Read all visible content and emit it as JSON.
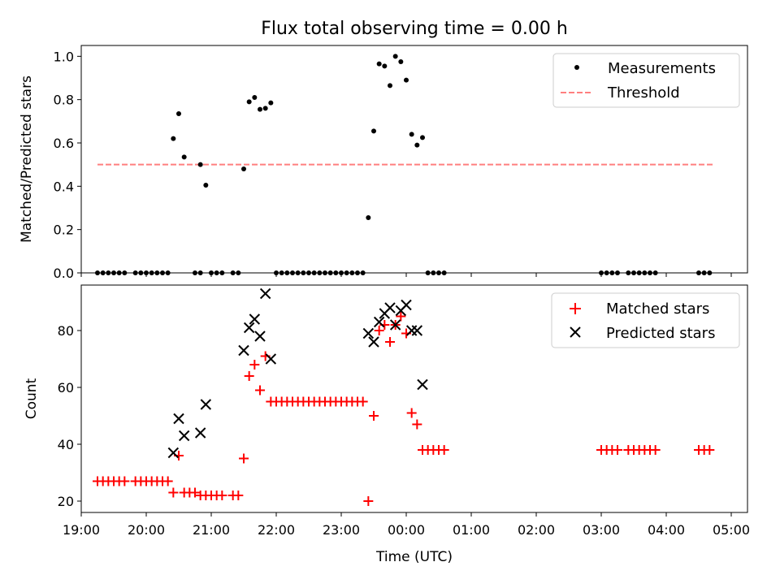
{
  "title": "Flux total observing time = 0.00 h",
  "chart_data": [
    {
      "type": "scatter",
      "ylabel": "Matched/Predicted stars",
      "xlim": [
        "19:00",
        "05:15"
      ],
      "ylim": [
        0,
        1.05
      ],
      "yticks": [
        0.0,
        0.2,
        0.4,
        0.6,
        0.8,
        1.0
      ],
      "legend": {
        "placement": "top-right",
        "entries": [
          "Measurements",
          "Threshold"
        ]
      },
      "series": [
        {
          "name": "Measurements",
          "color": "#000000",
          "marker": "dot",
          "points": [
            [
              "19:15",
              0
            ],
            [
              "19:20",
              0
            ],
            [
              "19:25",
              0
            ],
            [
              "19:30",
              0
            ],
            [
              "19:35",
              0
            ],
            [
              "19:40",
              0
            ],
            [
              "19:50",
              0
            ],
            [
              "19:55",
              0
            ],
            [
              "20:00",
              0
            ],
            [
              "20:05",
              0
            ],
            [
              "20:10",
              0
            ],
            [
              "20:15",
              0
            ],
            [
              "20:20",
              0
            ],
            [
              "20:25",
              0.62
            ],
            [
              "20:30",
              0.735
            ],
            [
              "20:35",
              0.535
            ],
            [
              "20:45",
              0
            ],
            [
              "20:50",
              0
            ],
            [
              "20:50",
              0.5
            ],
            [
              "20:55",
              0.405
            ],
            [
              "21:00",
              0
            ],
            [
              "21:05",
              0
            ],
            [
              "21:10",
              0
            ],
            [
              "21:20",
              0
            ],
            [
              "21:25",
              0
            ],
            [
              "21:30",
              0.48
            ],
            [
              "21:35",
              0.79
            ],
            [
              "21:40",
              0.81
            ],
            [
              "21:45",
              0.755
            ],
            [
              "21:50",
              0.76
            ],
            [
              "21:55",
              0.785
            ],
            [
              "22:00",
              0
            ],
            [
              "22:05",
              0
            ],
            [
              "22:10",
              0
            ],
            [
              "22:15",
              0
            ],
            [
              "22:20",
              0
            ],
            [
              "22:25",
              0
            ],
            [
              "22:30",
              0
            ],
            [
              "22:35",
              0
            ],
            [
              "22:40",
              0
            ],
            [
              "22:45",
              0
            ],
            [
              "22:50",
              0
            ],
            [
              "22:55",
              0
            ],
            [
              "23:00",
              0
            ],
            [
              "23:05",
              0
            ],
            [
              "23:10",
              0
            ],
            [
              "23:15",
              0
            ],
            [
              "23:20",
              0
            ],
            [
              "23:25",
              0.255
            ],
            [
              "23:30",
              0.655
            ],
            [
              "23:35",
              0.965
            ],
            [
              "23:40",
              0.955
            ],
            [
              "23:45",
              0.865
            ],
            [
              "23:50",
              1.0
            ],
            [
              "23:55",
              0.975
            ],
            [
              "00:00",
              0.89
            ],
            [
              "00:05",
              0.64
            ],
            [
              "00:10",
              0.59
            ],
            [
              "00:15",
              0.625
            ],
            [
              "00:20",
              0
            ],
            [
              "00:25",
              0
            ],
            [
              "00:30",
              0
            ],
            [
              "00:35",
              0
            ],
            [
              "03:00",
              0
            ],
            [
              "03:05",
              0
            ],
            [
              "03:10",
              0
            ],
            [
              "03:15",
              0
            ],
            [
              "03:25",
              0
            ],
            [
              "03:30",
              0
            ],
            [
              "03:35",
              0
            ],
            [
              "03:40",
              0
            ],
            [
              "03:45",
              0
            ],
            [
              "03:50",
              0
            ],
            [
              "04:30",
              0
            ],
            [
              "04:35",
              0
            ],
            [
              "04:40",
              0
            ]
          ]
        },
        {
          "name": "Threshold",
          "color": "#ff7f7f",
          "style": "dashed",
          "points": [
            [
              "19:15",
              0.5
            ],
            [
              "04:45",
              0.5
            ]
          ]
        }
      ]
    },
    {
      "type": "scatter",
      "ylabel": "Count",
      "xlabel": "Time (UTC)",
      "xlim": [
        "19:00",
        "05:15"
      ],
      "ylim": [
        16,
        96
      ],
      "yticks": [
        20,
        40,
        60,
        80
      ],
      "xticks": [
        "19:00",
        "20:00",
        "21:00",
        "22:00",
        "23:00",
        "00:00",
        "01:00",
        "02:00",
        "03:00",
        "04:00",
        "05:00"
      ],
      "legend": {
        "placement": "top-right",
        "entries": [
          "Matched stars",
          "Predicted stars"
        ]
      },
      "series": [
        {
          "name": "Matched stars",
          "color": "#ff0000",
          "marker": "plus",
          "points": [
            [
              "19:15",
              27
            ],
            [
              "19:20",
              27
            ],
            [
              "19:25",
              27
            ],
            [
              "19:30",
              27
            ],
            [
              "19:35",
              27
            ],
            [
              "19:40",
              27
            ],
            [
              "19:50",
              27
            ],
            [
              "19:55",
              27
            ],
            [
              "20:00",
              27
            ],
            [
              "20:05",
              27
            ],
            [
              "20:10",
              27
            ],
            [
              "20:15",
              27
            ],
            [
              "20:20",
              27
            ],
            [
              "20:25",
              23
            ],
            [
              "20:30",
              36
            ],
            [
              "20:35",
              23
            ],
            [
              "20:40",
              23
            ],
            [
              "20:45",
              23
            ],
            [
              "20:50",
              22
            ],
            [
              "20:55",
              22
            ],
            [
              "21:00",
              22
            ],
            [
              "21:05",
              22
            ],
            [
              "21:10",
              22
            ],
            [
              "21:20",
              22
            ],
            [
              "21:25",
              22
            ],
            [
              "21:30",
              35
            ],
            [
              "21:35",
              64
            ],
            [
              "21:40",
              68
            ],
            [
              "21:45",
              59
            ],
            [
              "21:50",
              71
            ],
            [
              "21:55",
              55
            ],
            [
              "22:00",
              55
            ],
            [
              "22:05",
              55
            ],
            [
              "22:10",
              55
            ],
            [
              "22:15",
              55
            ],
            [
              "22:20",
              55
            ],
            [
              "22:25",
              55
            ],
            [
              "22:30",
              55
            ],
            [
              "22:35",
              55
            ],
            [
              "22:40",
              55
            ],
            [
              "22:45",
              55
            ],
            [
              "22:50",
              55
            ],
            [
              "22:55",
              55
            ],
            [
              "23:00",
              55
            ],
            [
              "23:05",
              55
            ],
            [
              "23:10",
              55
            ],
            [
              "23:15",
              55
            ],
            [
              "23:20",
              55
            ],
            [
              "23:25",
              20
            ],
            [
              "23:30",
              50
            ],
            [
              "23:35",
              80
            ],
            [
              "23:40",
              82
            ],
            [
              "23:45",
              76
            ],
            [
              "23:50",
              82
            ],
            [
              "23:55",
              85
            ],
            [
              "00:00",
              79
            ],
            [
              "00:05",
              51
            ],
            [
              "00:10",
              47
            ],
            [
              "00:15",
              38
            ],
            [
              "00:20",
              38
            ],
            [
              "00:25",
              38
            ],
            [
              "00:30",
              38
            ],
            [
              "00:35",
              38
            ],
            [
              "03:00",
              38
            ],
            [
              "03:05",
              38
            ],
            [
              "03:10",
              38
            ],
            [
              "03:15",
              38
            ],
            [
              "03:25",
              38
            ],
            [
              "03:30",
              38
            ],
            [
              "03:35",
              38
            ],
            [
              "03:40",
              38
            ],
            [
              "03:45",
              38
            ],
            [
              "03:50",
              38
            ],
            [
              "04:30",
              38
            ],
            [
              "04:35",
              38
            ],
            [
              "04:40",
              38
            ]
          ]
        },
        {
          "name": "Predicted stars",
          "color": "#000000",
          "marker": "x",
          "points": [
            [
              "20:25",
              37
            ],
            [
              "20:30",
              49
            ],
            [
              "20:35",
              43
            ],
            [
              "20:50",
              44
            ],
            [
              "20:55",
              54
            ],
            [
              "21:30",
              73
            ],
            [
              "21:35",
              81
            ],
            [
              "21:40",
              84
            ],
            [
              "21:45",
              78
            ],
            [
              "21:50",
              93
            ],
            [
              "21:55",
              70
            ],
            [
              "23:25",
              79
            ],
            [
              "23:30",
              76
            ],
            [
              "23:35",
              83
            ],
            [
              "23:40",
              86
            ],
            [
              "23:45",
              88
            ],
            [
              "23:50",
              82
            ],
            [
              "23:55",
              87
            ],
            [
              "00:00",
              89
            ],
            [
              "00:05",
              80
            ],
            [
              "00:10",
              80
            ],
            [
              "00:15",
              61
            ]
          ]
        }
      ]
    }
  ]
}
